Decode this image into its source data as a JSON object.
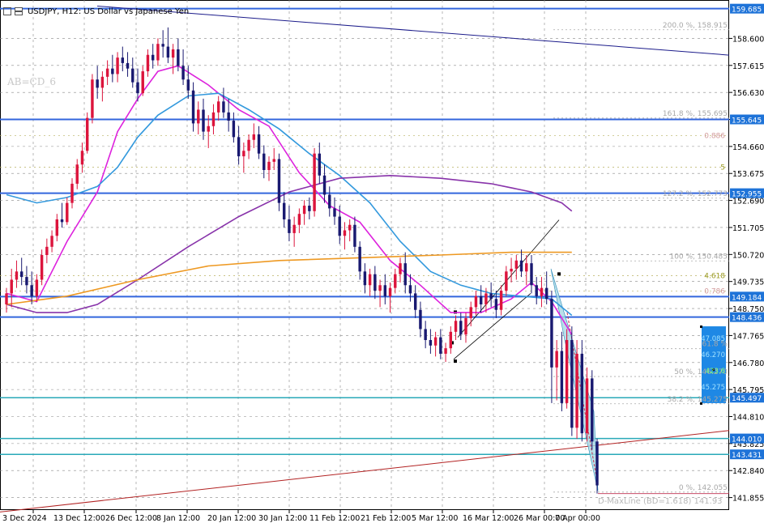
{
  "header": {
    "symbol_label": "USDJPY, H12:  US Dollar vs Japanese Yen",
    "icons": [
      "bar-chart-icon",
      "candle-chart-icon"
    ]
  },
  "indicator_label": "AB=CD_6",
  "chart_data": {
    "type": "candlestick",
    "title": "USDJPY, H12:  US Dollar vs Japanese Yen",
    "ylim": [
      141.4,
      160.0
    ],
    "y_ticks": [
      "158.600",
      "157.615",
      "156.630",
      "155.645",
      "154.660",
      "153.675",
      "152.690",
      "151.705",
      "150.720",
      "149.735",
      "148.750",
      "147.765",
      "146.780",
      "145.795",
      "144.810",
      "143.825",
      "142.840",
      "141.855"
    ],
    "x_labels": [
      "3 Dec 2024",
      "13 Dec 12:00",
      "26 Dec 12:00",
      "8 Jan 12:00",
      "20 Jan 12:00",
      "30 Jan 12:00",
      "11 Feb 12:00",
      "21 Feb 12:00",
      "5 Mar 12:00",
      "16 Mar 12:00",
      "26 Mar 00:00",
      "7 Apr 00:00"
    ],
    "grid": true,
    "colors": {
      "bull": "#dc143c",
      "bear": "#191970",
      "ma_fast": "#dd22dd",
      "ma_mid": "#3399dd",
      "ma_slow": "#8833aa",
      "ma_long": "#ee9922",
      "hline": "#3366dd",
      "fib": "#b0b0b0",
      "price_tag": "#1e73d8"
    },
    "price_levels": [
      {
        "label": "159.685",
        "value": 159.685
      },
      {
        "label": "155.645",
        "value": 155.645
      },
      {
        "label": "152.955",
        "value": 152.955
      },
      {
        "label": "149.184",
        "value": 149.184
      },
      {
        "label": "148.436",
        "value": 148.436
      },
      {
        "label": "145.497",
        "value": 145.497
      },
      {
        "label": "144.010",
        "value": 144.01
      },
      {
        "label": "143.431",
        "value": 143.431
      }
    ],
    "fib_levels": [
      {
        "label": "200.0 %, 158.915",
        "value": 158.915
      },
      {
        "label": "161.8 %, 155.695",
        "value": 155.695
      },
      {
        "label": "127.2 %, 152.773",
        "value": 152.773
      },
      {
        "label": "100 %, 150.485",
        "value": 150.485
      },
      {
        "label": "61.8 %",
        "value": 147.285
      },
      {
        "label": "50 %, 146.270",
        "value": 146.27
      },
      {
        "label": "38.2 %, 145.275",
        "value": 145.275
      },
      {
        "label": "0 %, 142.055",
        "value": 142.055
      }
    ],
    "abcd_ratios": [
      {
        "label": "0.886",
        "value": 155.06
      },
      {
        "label": "5",
        "value": 153.9
      },
      {
        "label": "4.618",
        "value": 149.95
      },
      {
        "label": "0.786",
        "value": 149.38
      }
    ],
    "target_box": {
      "low": 145.3,
      "high": 148.1,
      "labels": [
        "47.085",
        "46.270",
        "423.6",
        "45.275"
      ]
    },
    "maxline_label": "D-MaxLine (BD=1.618)  141.93",
    "candles": [
      [
        148.9,
        149.5,
        148.6,
        149.3
      ],
      [
        149.3,
        150.2,
        148.8,
        149.8
      ],
      [
        149.8,
        150.5,
        149.5,
        150.1
      ],
      [
        150.1,
        150.6,
        149.6,
        149.9
      ],
      [
        149.9,
        150.3,
        149.3,
        149.6
      ],
      [
        149.6,
        150.1,
        148.9,
        149.2
      ],
      [
        149.2,
        150.0,
        149.0,
        149.8
      ],
      [
        149.8,
        150.9,
        149.6,
        150.7
      ],
      [
        150.7,
        151.3,
        150.4,
        151.0
      ],
      [
        151.0,
        151.6,
        150.8,
        151.4
      ],
      [
        151.4,
        152.2,
        151.2,
        152.0
      ],
      [
        152.0,
        152.6,
        151.7,
        151.9
      ],
      [
        151.9,
        152.8,
        151.8,
        152.6
      ],
      [
        152.6,
        153.5,
        152.4,
        153.3
      ],
      [
        153.3,
        154.2,
        153.1,
        154.0
      ],
      [
        154.0,
        154.8,
        153.7,
        154.5
      ],
      [
        154.5,
        155.9,
        154.4,
        155.7
      ],
      [
        155.7,
        157.3,
        155.5,
        157.1
      ],
      [
        157.1,
        157.6,
        156.4,
        156.8
      ],
      [
        156.8,
        157.4,
        156.3,
        157.2
      ],
      [
        157.2,
        157.8,
        156.9,
        157.5
      ],
      [
        157.5,
        158.0,
        157.0,
        157.3
      ],
      [
        157.3,
        158.1,
        157.0,
        157.9
      ],
      [
        157.9,
        158.3,
        157.4,
        157.7
      ],
      [
        157.7,
        158.1,
        157.2,
        157.5
      ],
      [
        157.5,
        157.9,
        156.8,
        157.0
      ],
      [
        157.0,
        157.5,
        156.3,
        156.6
      ],
      [
        156.6,
        157.6,
        156.5,
        157.4
      ],
      [
        157.4,
        158.2,
        157.2,
        158.0
      ],
      [
        158.0,
        158.4,
        157.5,
        157.8
      ],
      [
        157.8,
        158.6,
        157.6,
        158.4
      ],
      [
        158.4,
        158.9,
        157.9,
        158.3
      ],
      [
        158.3,
        159.0,
        157.7,
        157.9
      ],
      [
        157.9,
        158.4,
        157.3,
        158.2
      ],
      [
        158.2,
        158.6,
        157.4,
        157.6
      ],
      [
        157.6,
        158.2,
        156.9,
        157.1
      ],
      [
        157.1,
        157.6,
        156.4,
        156.7
      ],
      [
        156.7,
        157.0,
        155.2,
        155.5
      ],
      [
        155.5,
        156.3,
        155.1,
        156.0
      ],
      [
        156.0,
        156.4,
        154.9,
        155.2
      ],
      [
        155.2,
        155.8,
        154.6,
        155.4
      ],
      [
        155.4,
        156.2,
        155.1,
        155.9
      ],
      [
        155.9,
        156.5,
        155.6,
        156.3
      ],
      [
        156.3,
        156.8,
        155.7,
        155.9
      ],
      [
        155.9,
        156.4,
        155.2,
        155.6
      ],
      [
        155.6,
        155.9,
        154.8,
        155.0
      ],
      [
        155.0,
        155.4,
        154.0,
        154.3
      ],
      [
        154.3,
        154.8,
        153.7,
        154.5
      ],
      [
        154.5,
        155.1,
        154.2,
        154.9
      ],
      [
        154.9,
        155.5,
        154.6,
        155.1
      ],
      [
        155.1,
        155.4,
        154.2,
        154.4
      ],
      [
        154.4,
        154.7,
        153.5,
        153.8
      ],
      [
        153.8,
        154.3,
        153.4,
        154.1
      ],
      [
        154.1,
        154.6,
        153.8,
        154.2
      ],
      [
        154.2,
        154.4,
        152.3,
        152.6
      ],
      [
        152.6,
        153.0,
        151.7,
        152.0
      ],
      [
        152.0,
        152.5,
        151.2,
        151.5
      ],
      [
        151.5,
        152.1,
        151.0,
        151.8
      ],
      [
        151.8,
        152.4,
        151.5,
        152.2
      ],
      [
        152.2,
        152.7,
        151.8,
        152.5
      ],
      [
        152.5,
        152.8,
        152.0,
        152.3
      ],
      [
        152.3,
        154.6,
        152.1,
        154.4
      ],
      [
        154.4,
        154.8,
        153.3,
        153.6
      ],
      [
        153.6,
        154.0,
        152.6,
        152.9
      ],
      [
        152.9,
        153.2,
        152.1,
        152.4
      ],
      [
        152.4,
        152.8,
        151.8,
        152.1
      ],
      [
        152.1,
        152.5,
        151.1,
        151.4
      ],
      [
        151.4,
        151.9,
        150.9,
        151.6
      ],
      [
        151.6,
        152.0,
        151.2,
        151.8
      ],
      [
        151.8,
        152.1,
        150.8,
        151.0
      ],
      [
        151.0,
        151.2,
        149.8,
        150.1
      ],
      [
        150.1,
        150.4,
        149.3,
        149.6
      ],
      [
        149.6,
        150.2,
        149.2,
        150.0
      ],
      [
        150.0,
        150.3,
        149.1,
        149.4
      ],
      [
        149.4,
        149.8,
        148.8,
        149.6
      ],
      [
        149.6,
        150.0,
        148.9,
        149.2
      ],
      [
        149.2,
        149.7,
        148.6,
        149.5
      ],
      [
        149.5,
        150.2,
        149.3,
        150.0
      ],
      [
        150.0,
        150.6,
        149.7,
        150.4
      ],
      [
        150.4,
        150.8,
        149.3,
        149.6
      ],
      [
        149.6,
        150.0,
        149.0,
        149.3
      ],
      [
        149.3,
        149.6,
        148.4,
        148.7
      ],
      [
        148.7,
        149.0,
        147.7,
        148.0
      ],
      [
        148.0,
        148.3,
        147.3,
        147.6
      ],
      [
        147.6,
        148.0,
        147.1,
        147.4
      ],
      [
        147.4,
        147.9,
        147.0,
        147.7
      ],
      [
        147.7,
        148.0,
        146.9,
        147.1
      ],
      [
        147.1,
        147.5,
        146.8,
        147.3
      ],
      [
        147.3,
        148.1,
        147.1,
        147.9
      ],
      [
        147.9,
        148.5,
        147.6,
        148.3
      ],
      [
        148.3,
        148.6,
        147.6,
        147.8
      ],
      [
        147.8,
        148.6,
        147.5,
        148.4
      ],
      [
        148.4,
        149.0,
        148.1,
        148.8
      ],
      [
        148.8,
        149.4,
        148.5,
        149.2
      ],
      [
        149.2,
        149.6,
        148.6,
        148.9
      ],
      [
        148.9,
        149.5,
        148.6,
        149.3
      ],
      [
        149.3,
        149.7,
        148.8,
        149.1
      ],
      [
        149.1,
        149.4,
        148.4,
        148.7
      ],
      [
        148.7,
        149.6,
        148.5,
        149.4
      ],
      [
        149.4,
        150.3,
        149.2,
        150.1
      ],
      [
        150.1,
        150.6,
        149.7,
        150.2
      ],
      [
        150.2,
        150.7,
        149.8,
        150.5
      ],
      [
        150.5,
        150.9,
        149.9,
        150.1
      ],
      [
        150.1,
        150.7,
        149.6,
        150.4
      ],
      [
        150.4,
        150.7,
        149.3,
        149.6
      ],
      [
        149.6,
        149.9,
        148.9,
        149.2
      ],
      [
        149.2,
        149.9,
        148.8,
        149.5
      ],
      [
        149.5,
        150.1,
        148.9,
        149.1
      ],
      [
        149.1,
        149.4,
        145.3,
        146.6
      ],
      [
        146.6,
        147.6,
        145.4,
        147.2
      ],
      [
        147.2,
        147.9,
        145.0,
        145.3
      ],
      [
        145.3,
        148.0,
        145.1,
        147.6
      ],
      [
        147.6,
        148.1,
        144.1,
        144.4
      ],
      [
        144.4,
        147.6,
        144.0,
        147.1
      ],
      [
        147.1,
        147.6,
        143.9,
        144.2
      ],
      [
        144.2,
        146.6,
        143.9,
        146.2
      ],
      [
        146.2,
        146.5,
        143.6,
        143.9
      ],
      [
        143.9,
        144.0,
        142.0,
        142.3
      ]
    ],
    "series": [
      {
        "name": "",
        "color": "#dd22dd",
        "values": [
          [
            0,
            149.3
          ],
          [
            6,
            149.0
          ],
          [
            12,
            151.2
          ],
          [
            18,
            153.0
          ],
          [
            22,
            155.2
          ],
          [
            26,
            156.4
          ],
          [
            30,
            157.4
          ],
          [
            34,
            157.6
          ],
          [
            40,
            156.9
          ],
          [
            46,
            156.0
          ],
          [
            52,
            155.4
          ],
          [
            58,
            153.7
          ],
          [
            64,
            152.5
          ],
          [
            70,
            151.9
          ],
          [
            76,
            150.5
          ],
          [
            82,
            149.6
          ],
          [
            88,
            148.6
          ],
          [
            94,
            148.6
          ],
          [
            100,
            149.1
          ],
          [
            104,
            149.7
          ],
          [
            108,
            149.0
          ],
          [
            112,
            147.8
          ]
        ]
      },
      {
        "name": "",
        "color": "#3399dd",
        "values": [
          [
            0,
            152.9
          ],
          [
            6,
            152.6
          ],
          [
            12,
            152.8
          ],
          [
            18,
            153.2
          ],
          [
            22,
            153.9
          ],
          [
            26,
            155.0
          ],
          [
            30,
            155.8
          ],
          [
            36,
            156.5
          ],
          [
            42,
            156.6
          ],
          [
            48,
            156.0
          ],
          [
            54,
            155.3
          ],
          [
            60,
            154.4
          ],
          [
            66,
            153.6
          ],
          [
            72,
            152.6
          ],
          [
            78,
            151.2
          ],
          [
            84,
            150.1
          ],
          [
            90,
            149.6
          ],
          [
            96,
            149.3
          ],
          [
            102,
            149.2
          ],
          [
            108,
            149.1
          ],
          [
            112,
            148.5
          ]
        ]
      },
      {
        "name": "",
        "color": "#8833aa",
        "values": [
          [
            0,
            148.9
          ],
          [
            6,
            148.6
          ],
          [
            12,
            148.6
          ],
          [
            18,
            148.9
          ],
          [
            26,
            149.8
          ],
          [
            36,
            151.0
          ],
          [
            46,
            152.1
          ],
          [
            56,
            153.0
          ],
          [
            66,
            153.5
          ],
          [
            76,
            153.6
          ],
          [
            86,
            153.5
          ],
          [
            96,
            153.3
          ],
          [
            104,
            153.0
          ],
          [
            110,
            152.6
          ],
          [
            112,
            152.3
          ]
        ]
      },
      {
        "name": "",
        "color": "#ee9922",
        "values": [
          [
            0,
            148.9
          ],
          [
            12,
            149.2
          ],
          [
            26,
            149.8
          ],
          [
            40,
            150.3
          ],
          [
            54,
            150.5
          ],
          [
            70,
            150.6
          ],
          [
            86,
            150.7
          ],
          [
            100,
            150.8
          ],
          [
            112,
            150.8
          ]
        ]
      }
    ]
  }
}
